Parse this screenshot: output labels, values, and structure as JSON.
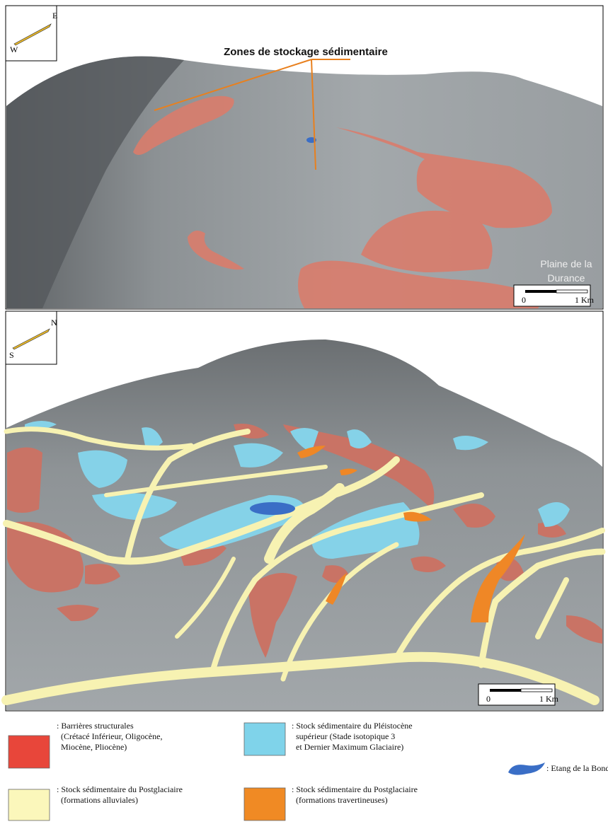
{
  "top_panel": {
    "compass": {
      "top_label": "E",
      "bottom_label": "W"
    },
    "annotation": "Zones de stockage sédimentaire",
    "place_label": [
      "Plaine de la",
      "Durance"
    ],
    "scale": {
      "start": "0",
      "end": "1 Km"
    }
  },
  "bottom_panel": {
    "compass": {
      "top_label": "N",
      "bottom_label": "S"
    },
    "scale": {
      "start": "0",
      "end": "1 Km"
    }
  },
  "legend": [
    {
      "color": "#e8463a",
      "lines": [
        ": Barrières structurales",
        "(Crétacé Inférieur, Oligocène,",
        "Miocène, Pliocène)"
      ]
    },
    {
      "color": "#fbf7bb",
      "lines": [
        ": Stock sédimentaire du Postglaciaire",
        "(formations alluviales)"
      ]
    },
    {
      "color": "#7fd3ea",
      "lines": [
        ": Stock sédimentaire du Pléistocène",
        "supérieur (Stade isotopique 3",
        "et Dernier Maximum Glaciaire)"
      ]
    },
    {
      "color": "#f08a24",
      "lines": [
        ": Stock sédimentaire du Postglaciaire",
        "(formations travertineuses)"
      ]
    },
    {
      "color": "#3a6ec6",
      "lines": [
        ": Etang de la Bonde"
      ]
    }
  ]
}
